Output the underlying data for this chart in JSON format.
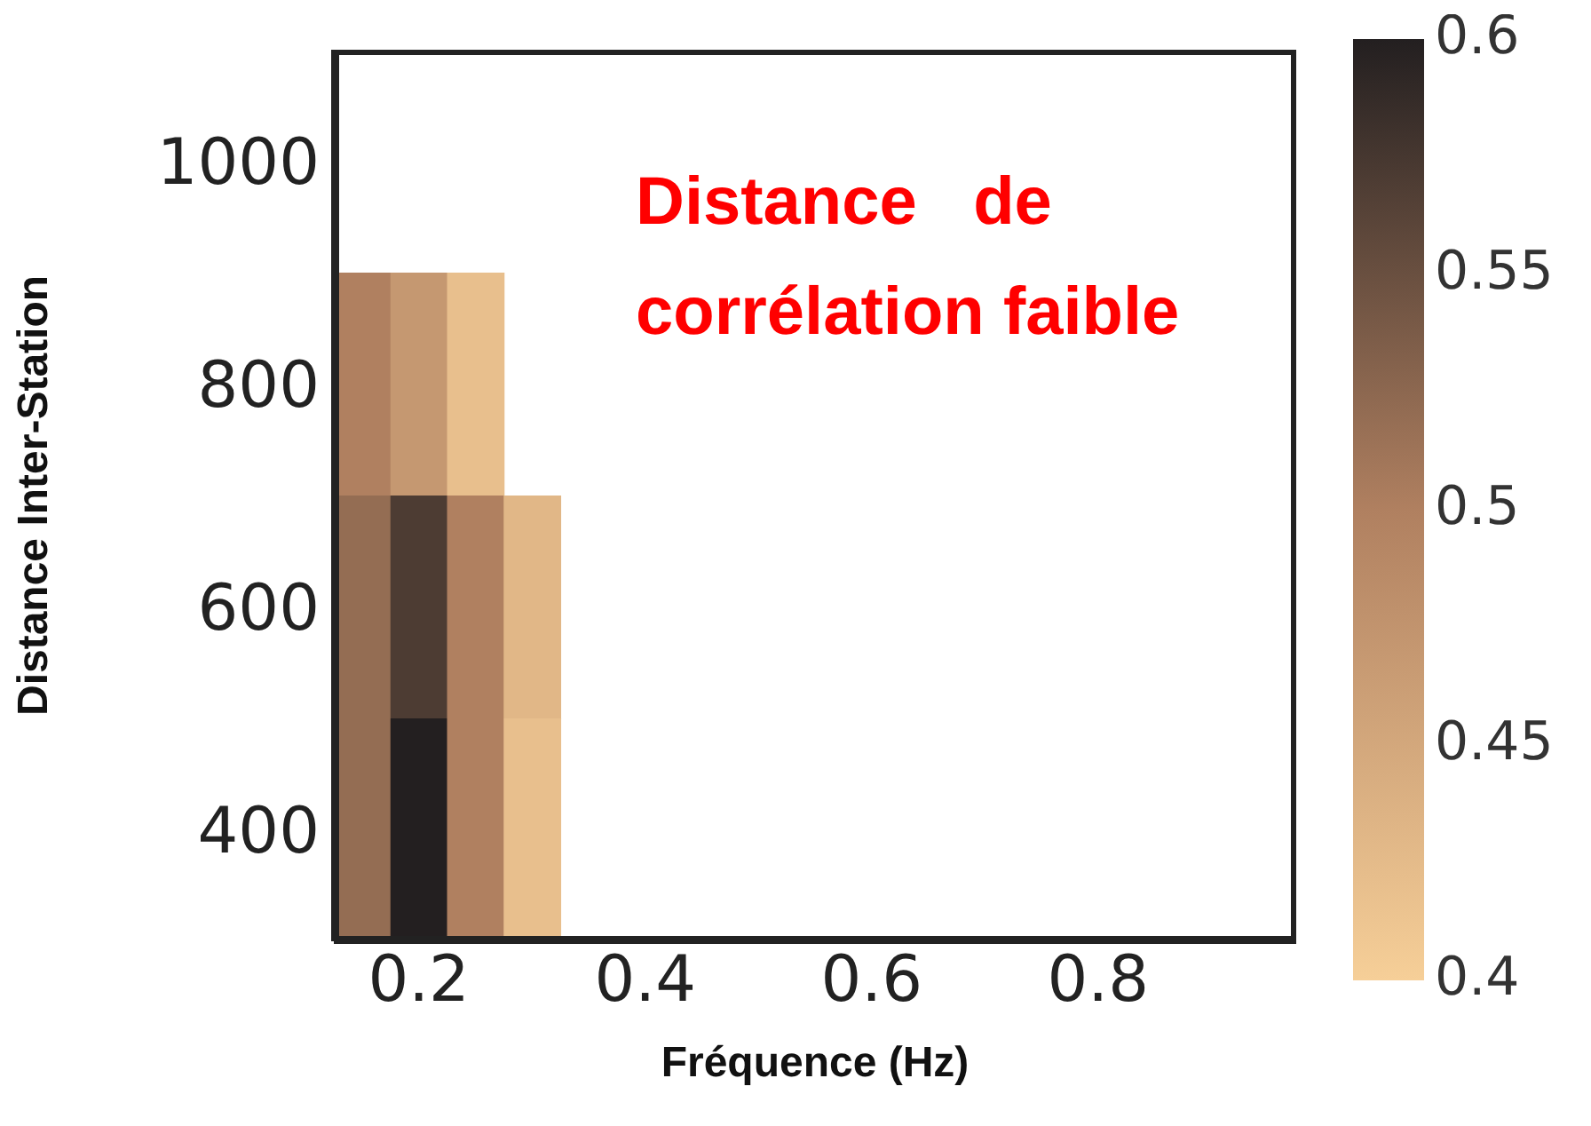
{
  "chart_data": {
    "type": "heatmap",
    "xlabel": "Fréquence (Hz)",
    "ylabel": "Distance Inter-Station",
    "categories": [
      null,
      "0.2",
      null,
      null,
      null,
      "0.4",
      null,
      null,
      null,
      "0.6",
      null,
      null,
      null,
      "0.8",
      null,
      null,
      null
    ],
    "y_categories": [
      "1000",
      "800",
      "600",
      "400"
    ],
    "cells": [
      [
        null,
        null,
        null,
        null,
        null,
        null,
        null,
        null,
        null,
        null,
        null,
        null,
        null,
        null,
        null,
        null,
        null
      ],
      [
        0.5,
        0.47,
        0.42,
        null,
        null,
        null,
        null,
        null,
        null,
        null,
        null,
        null,
        null,
        null,
        null,
        null,
        null
      ],
      [
        0.52,
        0.57,
        0.5,
        0.43,
        null,
        null,
        null,
        null,
        null,
        null,
        null,
        null,
        null,
        null,
        null,
        null,
        null
      ],
      [
        0.52,
        0.6,
        0.5,
        0.42,
        null,
        null,
        null,
        null,
        null,
        null,
        null,
        null,
        null,
        null,
        null,
        null,
        null
      ]
    ],
    "clim": [
      0.4,
      0.6
    ],
    "cticks": [
      0.4,
      0.45,
      0.5,
      0.55,
      0.6
    ],
    "annotations": [
      "Distance   de corrélation faible"
    ]
  }
}
